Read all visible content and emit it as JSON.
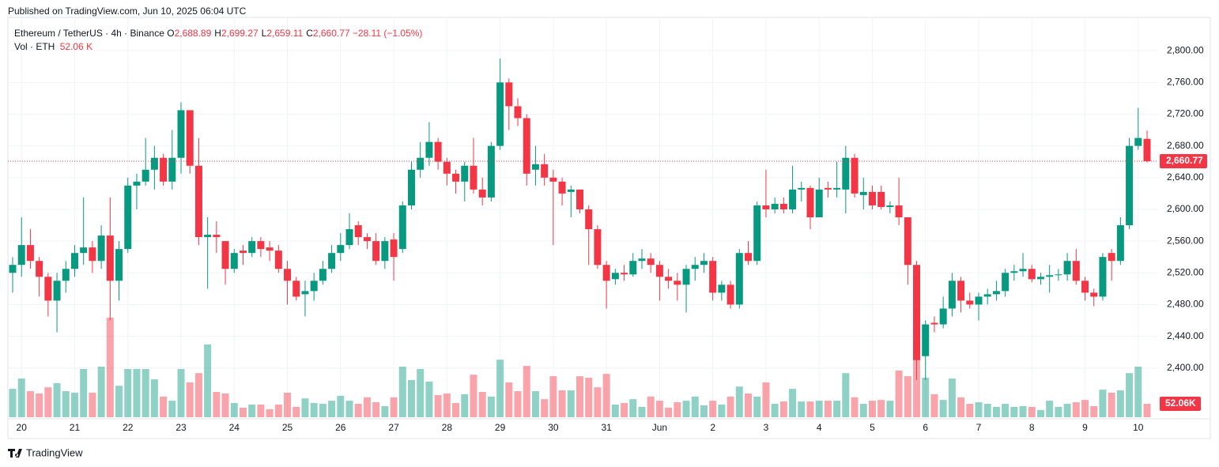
{
  "header": {
    "published": "Published on TradingView.com, Jun 10, 2025 06:04 UTC"
  },
  "chart_data": {
    "type": "candlestick",
    "symbol": "Ethereum / TetherUS · 4h · Binance",
    "legend": [
      {
        "key": "O",
        "value": "2,688.89"
      },
      {
        "key": "H",
        "value": "2,699.27"
      },
      {
        "key": "L",
        "value": "2,659.11"
      },
      {
        "key": "C",
        "value": "2,660.77"
      }
    ],
    "change": "−28.11 (−1.05%)",
    "volume_title": "Vol · ETH",
    "volume_value": "52.06 K",
    "up_color": "#089981",
    "down_color": "#f23645",
    "categories": [
      null,
      "20",
      null,
      null,
      null,
      null,
      null,
      "21",
      null,
      null,
      null,
      null,
      null,
      "22",
      null,
      null,
      null,
      null,
      null,
      "23",
      null,
      null,
      null,
      null,
      null,
      "24",
      null,
      null,
      null,
      null,
      null,
      "25",
      null,
      null,
      null,
      null,
      null,
      "26",
      null,
      null,
      null,
      null,
      null,
      "27",
      null,
      null,
      null,
      null,
      null,
      "28",
      null,
      null,
      null,
      null,
      null,
      "29",
      null,
      null,
      null,
      null,
      null,
      "30",
      null,
      null,
      null,
      null,
      null,
      "31",
      null,
      null,
      null,
      null,
      null,
      "Jun",
      null,
      null,
      null,
      null,
      null,
      "2",
      null,
      null,
      null,
      null,
      null,
      "3",
      null,
      null,
      null,
      null,
      null,
      "4",
      null,
      null,
      null,
      null,
      null,
      "5",
      null,
      null,
      null,
      null,
      null,
      "6",
      null,
      null,
      null,
      null,
      null,
      "7",
      null,
      null,
      null,
      null,
      null,
      "8",
      null,
      null,
      null,
      null,
      null,
      "9",
      null,
      null,
      null,
      null,
      null,
      "10",
      null
    ],
    "candles": [
      [
        2520,
        2540,
        2495,
        2530
      ],
      [
        2530,
        2590,
        2515,
        2555
      ],
      [
        2555,
        2575,
        2525,
        2535
      ],
      [
        2535,
        2540,
        2490,
        2515
      ],
      [
        2515,
        2520,
        2465,
        2485
      ],
      [
        2485,
        2520,
        2445,
        2510
      ],
      [
        2510,
        2535,
        2495,
        2525
      ],
      [
        2525,
        2555,
        2515,
        2545
      ],
      [
        2545,
        2615,
        2530,
        2552
      ],
      [
        2552,
        2560,
        2520,
        2535
      ],
      [
        2535,
        2580,
        2525,
        2567
      ],
      [
        2567,
        2615,
        2460,
        2510
      ],
      [
        2510,
        2560,
        2485,
        2550
      ],
      [
        2550,
        2640,
        2545,
        2630
      ],
      [
        2630,
        2645,
        2600,
        2635
      ],
      [
        2635,
        2690,
        2630,
        2650
      ],
      [
        2650,
        2680,
        2625,
        2665
      ],
      [
        2665,
        2670,
        2630,
        2635
      ],
      [
        2635,
        2700,
        2625,
        2665
      ],
      [
        2665,
        2735,
        2645,
        2725
      ],
      [
        2725,
        2725,
        2645,
        2655
      ],
      [
        2655,
        2690,
        2555,
        2565
      ],
      [
        2565,
        2590,
        2500,
        2568
      ],
      [
        2568,
        2585,
        2545,
        2565
      ],
      [
        2560,
        2560,
        2505,
        2525
      ],
      [
        2525,
        2550,
        2520,
        2545
      ],
      [
        2548,
        2555,
        2530,
        2545
      ],
      [
        2545,
        2565,
        2540,
        2560
      ],
      [
        2560,
        2565,
        2540,
        2550
      ],
      [
        2552,
        2560,
        2535,
        2548
      ],
      [
        2548,
        2555,
        2520,
        2525
      ],
      [
        2525,
        2535,
        2480,
        2510
      ],
      [
        2510,
        2515,
        2485,
        2490
      ],
      [
        2493,
        2510,
        2465,
        2497
      ],
      [
        2497,
        2520,
        2485,
        2510
      ],
      [
        2510,
        2535,
        2505,
        2525
      ],
      [
        2525,
        2555,
        2520,
        2545
      ],
      [
        2545,
        2570,
        2535,
        2555
      ],
      [
        2555,
        2595,
        2550,
        2575
      ],
      [
        2580,
        2585,
        2555,
        2565
      ],
      [
        2565,
        2570,
        2550,
        2560
      ],
      [
        2560,
        2570,
        2530,
        2535
      ],
      [
        2535,
        2565,
        2525,
        2560
      ],
      [
        2562,
        2570,
        2510,
        2540
      ],
      [
        2550,
        2610,
        2545,
        2605
      ],
      [
        2605,
        2660,
        2600,
        2650
      ],
      [
        2650,
        2685,
        2640,
        2665
      ],
      [
        2665,
        2710,
        2655,
        2685
      ],
      [
        2685,
        2690,
        2650,
        2660
      ],
      [
        2660,
        2665,
        2630,
        2645
      ],
      [
        2645,
        2650,
        2620,
        2635
      ],
      [
        2635,
        2660,
        2610,
        2655
      ],
      [
        2655,
        2690,
        2620,
        2625
      ],
      [
        2625,
        2640,
        2605,
        2615
      ],
      [
        2615,
        2685,
        2610,
        2680
      ],
      [
        2680,
        2790,
        2675,
        2760
      ],
      [
        2760,
        2765,
        2700,
        2730
      ],
      [
        2730,
        2740,
        2705,
        2715
      ],
      [
        2715,
        2720,
        2630,
        2645
      ],
      [
        2650,
        2680,
        2630,
        2657
      ],
      [
        2657,
        2670,
        2630,
        2640
      ],
      [
        2640,
        2650,
        2555,
        2635
      ],
      [
        2635,
        2640,
        2605,
        2620
      ],
      [
        2622,
        2630,
        2590,
        2625
      ],
      [
        2625,
        2625,
        2595,
        2600
      ],
      [
        2600,
        2605,
        2530,
        2575
      ],
      [
        2575,
        2580,
        2525,
        2530
      ],
      [
        2530,
        2535,
        2475,
        2510
      ],
      [
        2512,
        2525,
        2505,
        2520
      ],
      [
        2520,
        2530,
        2510,
        2518
      ],
      [
        2518,
        2545,
        2515,
        2535
      ],
      [
        2535,
        2550,
        2525,
        2538
      ],
      [
        2538,
        2545,
        2520,
        2530
      ],
      [
        2530,
        2535,
        2485,
        2515
      ],
      [
        2515,
        2525,
        2500,
        2510
      ],
      [
        2510,
        2520,
        2485,
        2505
      ],
      [
        2505,
        2530,
        2470,
        2525
      ],
      [
        2525,
        2540,
        2510,
        2530
      ],
      [
        2530,
        2545,
        2520,
        2535
      ],
      [
        2535,
        2540,
        2485,
        2495
      ],
      [
        2495,
        2510,
        2485,
        2505
      ],
      [
        2505,
        2510,
        2475,
        2480
      ],
      [
        2480,
        2550,
        2475,
        2545
      ],
      [
        2545,
        2560,
        2530,
        2535
      ],
      [
        2535,
        2610,
        2530,
        2605
      ],
      [
        2605,
        2650,
        2590,
        2600
      ],
      [
        2600,
        2615,
        2595,
        2607
      ],
      [
        2607,
        2615,
        2595,
        2600
      ],
      [
        2600,
        2655,
        2595,
        2625
      ],
      [
        2625,
        2635,
        2610,
        2627
      ],
      [
        2627,
        2630,
        2575,
        2590
      ],
      [
        2590,
        2640,
        2590,
        2625
      ],
      [
        2627,
        2635,
        2615,
        2625
      ],
      [
        2625,
        2660,
        2615,
        2627
      ],
      [
        2625,
        2680,
        2595,
        2665
      ],
      [
        2665,
        2670,
        2615,
        2620
      ],
      [
        2618,
        2640,
        2600,
        2622
      ],
      [
        2622,
        2630,
        2600,
        2605
      ],
      [
        2622,
        2630,
        2600,
        2603
      ],
      [
        2603,
        2610,
        2595,
        2605
      ],
      [
        2605,
        2640,
        2580,
        2590
      ],
      [
        2590,
        2590,
        2505,
        2530
      ],
      [
        2530,
        2535,
        2385,
        2410
      ],
      [
        2415,
        2460,
        2385,
        2455
      ],
      [
        2457,
        2465,
        2445,
        2455
      ],
      [
        2455,
        2490,
        2450,
        2475
      ],
      [
        2475,
        2520,
        2465,
        2510
      ],
      [
        2510,
        2515,
        2470,
        2485
      ],
      [
        2485,
        2495,
        2475,
        2480
      ],
      [
        2480,
        2495,
        2460,
        2490
      ],
      [
        2490,
        2500,
        2480,
        2493
      ],
      [
        2493,
        2510,
        2485,
        2497
      ],
      [
        2497,
        2525,
        2490,
        2520
      ],
      [
        2520,
        2530,
        2510,
        2522
      ],
      [
        2522,
        2545,
        2515,
        2525
      ],
      [
        2525,
        2530,
        2508,
        2512
      ],
      [
        2512,
        2520,
        2505,
        2515
      ],
      [
        2515,
        2530,
        2495,
        2517
      ],
      [
        2517,
        2525,
        2510,
        2518
      ],
      [
        2518,
        2545,
        2510,
        2535
      ],
      [
        2535,
        2550,
        2505,
        2510
      ],
      [
        2510,
        2515,
        2485,
        2495
      ],
      [
        2495,
        2500,
        2478,
        2490
      ],
      [
        2490,
        2545,
        2485,
        2540
      ],
      [
        2545,
        2550,
        2510,
        2535
      ],
      [
        2535,
        2590,
        2530,
        2580
      ],
      [
        2580,
        2690,
        2575,
        2680
      ],
      [
        2680,
        2728,
        2675,
        2690
      ],
      [
        2688.89,
        2699.27,
        2659.11,
        2660.77
      ]
    ],
    "volume": [
      110,
      150,
      101,
      92,
      116,
      132,
      101,
      95,
      187,
      95,
      196,
      386,
      122,
      187,
      187,
      187,
      147,
      80,
      64,
      187,
      135,
      171,
      282,
      98,
      92,
      55,
      37,
      49,
      49,
      31,
      49,
      95,
      40,
      73,
      55,
      52,
      64,
      83,
      64,
      52,
      77,
      58,
      43,
      77,
      196,
      144,
      187,
      138,
      86,
      92,
      55,
      89,
      165,
      98,
      80,
      223,
      135,
      101,
      199,
      101,
      70,
      159,
      104,
      104,
      159,
      153,
      116,
      168,
      49,
      55,
      70,
      40,
      80,
      64,
      37,
      58,
      64,
      80,
      46,
      64,
      49,
      80,
      119,
      92,
      80,
      135,
      52,
      61,
      110,
      61,
      61,
      64,
      64,
      64,
      171,
      77,
      52,
      64,
      67,
      64,
      181,
      159,
      223,
      153,
      89,
      67,
      150,
      77,
      52,
      58,
      52,
      40,
      52,
      40,
      43,
      40,
      28,
      64,
      40,
      52,
      58,
      67,
      43,
      107,
      95,
      104,
      171,
      196,
      52.06
    ],
    "ylim": [
      2338,
      2842
    ],
    "yticks": [
      {
        "value": 2400,
        "label": "2,400.00"
      },
      {
        "value": 2440,
        "label": "2,440.00"
      },
      {
        "value": 2480,
        "label": "2,480.00"
      },
      {
        "value": 2520,
        "label": "2,520.00"
      },
      {
        "value": 2560,
        "label": "2,560.00"
      },
      {
        "value": 2600,
        "label": "2,600.00"
      },
      {
        "value": 2640,
        "label": "2,640.00"
      },
      {
        "value": 2680,
        "label": "2,680.00"
      },
      {
        "value": 2720,
        "label": "2,720.00"
      },
      {
        "value": 2760,
        "label": "2,760.00"
      },
      {
        "value": 2800,
        "label": "2,800.00"
      }
    ],
    "last_price": {
      "value": 2660.77,
      "label": "2,660.77"
    },
    "last_volume": {
      "value": 52.06,
      "label": "52.06K"
    },
    "grid": true
  },
  "footer": {
    "brand": "TradingView"
  }
}
